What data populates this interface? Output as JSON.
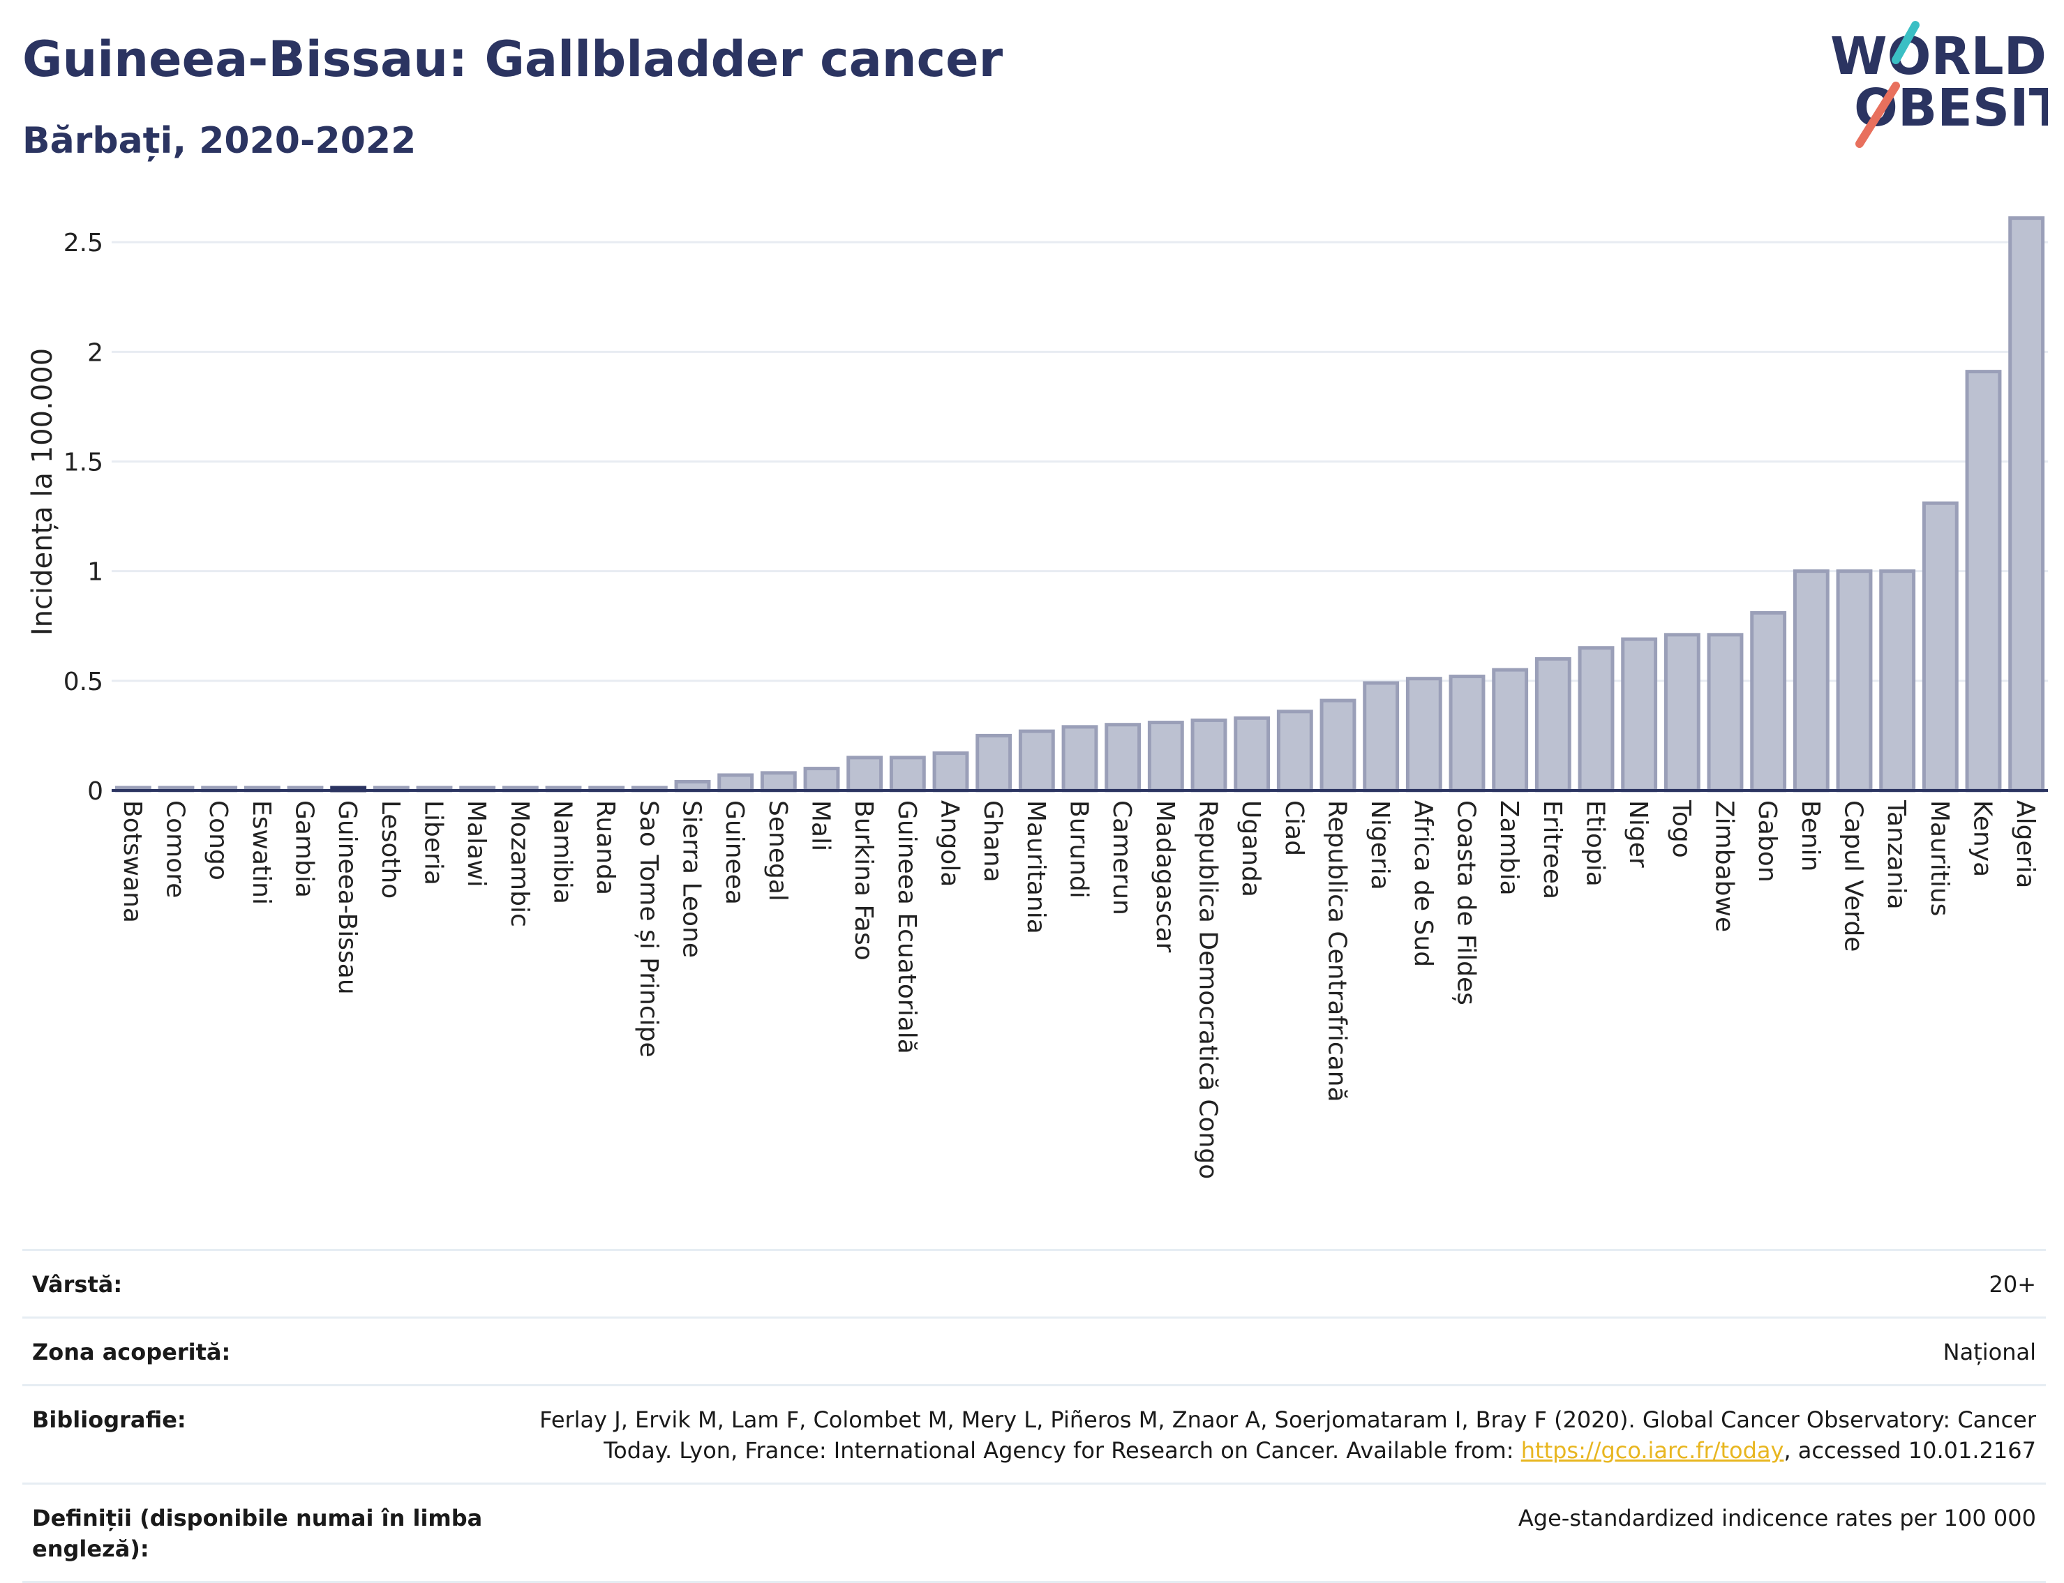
{
  "header": {
    "title": "Guineea-Bissau: Gallbladder cancer",
    "subtitle": "Bărbați, 2020-2022"
  },
  "logo": {
    "line1": "WORLD",
    "line2": "OBESITY",
    "colors": [
      "#2b3461",
      "#e8705d",
      "#3bbfc4"
    ]
  },
  "colors": {
    "bar": "#bcc1d1",
    "bar_stroke": "#9a9fb8",
    "highlight": "#2b3461",
    "grid": "#e8ecf2",
    "axis": "#2b3461"
  },
  "chart_data": {
    "type": "bar",
    "ylabel": "Incidența la 100.000",
    "ylim": [
      0,
      2.65
    ],
    "yticks": [
      "0",
      "0.5",
      "1",
      "1.5",
      "2",
      "2.5"
    ],
    "grid": true,
    "highlight": "Guineea-Bissau",
    "categories": [
      "Botswana",
      "Comore",
      "Congo",
      "Eswatini",
      "Gambia",
      "Guineea-Bissau",
      "Lesotho",
      "Liberia",
      "Malawi",
      "Mozambic",
      "Namibia",
      "Ruanda",
      "Sao Tome și Principe",
      "Sierra Leone",
      "Guineea",
      "Senegal",
      "Mali",
      "Burkina Faso",
      "Guineea Ecuatorială",
      "Angola",
      "Ghana",
      "Mauritania",
      "Burundi",
      "Camerun",
      "Madagascar",
      "Republica Democratică Congo",
      "Uganda",
      "Ciad",
      "Republica Centrafricană",
      "Nigeria",
      "Africa de Sud",
      "Coasta de Fildeș",
      "Zambia",
      "Eritreea",
      "Etiopia",
      "Niger",
      "Togo",
      "Zimbabwe",
      "Gabon",
      "Benin",
      "Capul Verde",
      "Tanzania",
      "Mauritius",
      "Kenya",
      "Algeria"
    ],
    "values": [
      0.01,
      0.01,
      0.01,
      0.01,
      0.01,
      0.01,
      0.01,
      0.01,
      0.01,
      0.01,
      0.01,
      0.01,
      0.01,
      0.04,
      0.07,
      0.08,
      0.1,
      0.15,
      0.15,
      0.17,
      0.25,
      0.27,
      0.29,
      0.3,
      0.31,
      0.32,
      0.33,
      0.36,
      0.41,
      0.49,
      0.51,
      0.52,
      0.55,
      0.6,
      0.65,
      0.69,
      0.71,
      0.71,
      0.81,
      1.0,
      1.0,
      1.0,
      1.31,
      1.91,
      2.61
    ]
  },
  "meta": {
    "age_label": "Vârstă:",
    "age_value": "20+",
    "area_label": "Zona acoperită:",
    "area_value": "Național",
    "biblio_label": "Bibliografie:",
    "biblio_text_line1": "Ferlay J, Ervik M, Lam F, Colombet M, Mery L, Piñeros M, Znaor A, Soerjomataram I, Bray F (2020). Global Cancer Observatory: Cancer",
    "biblio_text_line2_pre": "Today. Lyon, France: International Agency for Research on Cancer. Available from: ",
    "biblio_link": "https://gco.iarc.fr/today",
    "biblio_text_post": ", accessed 10.01.2167",
    "def_label": "Definiții (disponibile numai în limba engleză):",
    "def_value": "Age-standardized indicence rates per 100 000"
  }
}
